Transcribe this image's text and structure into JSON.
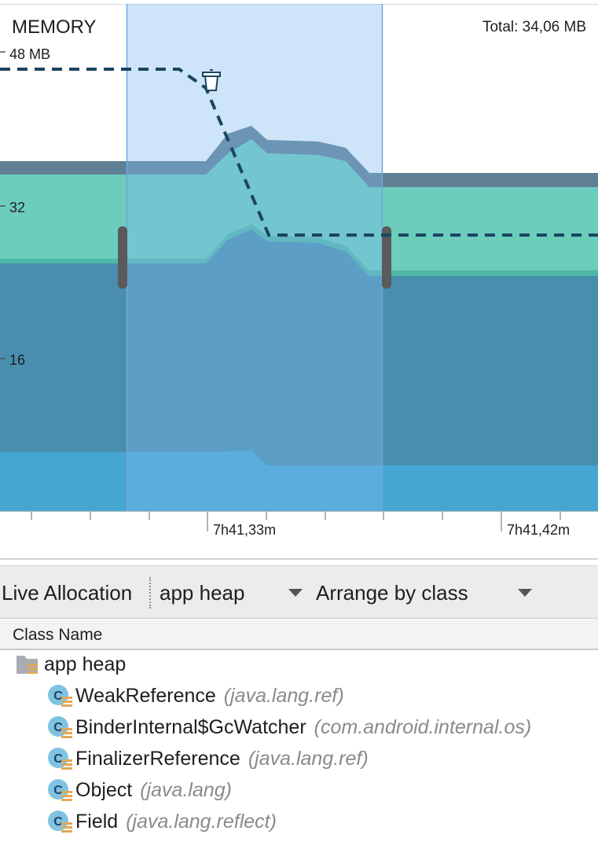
{
  "chart": {
    "title": "MEMORY",
    "total": "Total: 34,06 MB",
    "y_labels": [
      "48 MB",
      "32",
      "16"
    ],
    "x_labels": [
      "7h41,33m",
      "7h41,42m"
    ],
    "colors": {
      "stack_top": "#5f7f94",
      "teal": "#6ccdbd",
      "main": "#4a8eae",
      "bottom": "#45a6d2",
      "selection": "#b8d7f3",
      "dashed": "#1b4560"
    }
  },
  "toolbar": {
    "live_allocation": "Live Allocation",
    "heap_select": "app heap",
    "arrange_select": "Arrange by class"
  },
  "table": {
    "column_header": "Class Name",
    "root": {
      "label": "app heap",
      "icon": "folder-icon"
    },
    "rows": [
      {
        "name": "WeakReference",
        "package": "(java.lang.ref)",
        "icon": "class-icon"
      },
      {
        "name": "BinderInternal$GcWatcher",
        "package": "(com.android.internal.os)",
        "icon": "class-icon"
      },
      {
        "name": "FinalizerReference",
        "package": "(java.lang.ref)",
        "icon": "class-icon"
      },
      {
        "name": "Object",
        "package": "(java.lang)",
        "icon": "class-icon"
      },
      {
        "name": "Field",
        "package": "(java.lang.reflect)",
        "icon": "class-icon"
      }
    ]
  }
}
